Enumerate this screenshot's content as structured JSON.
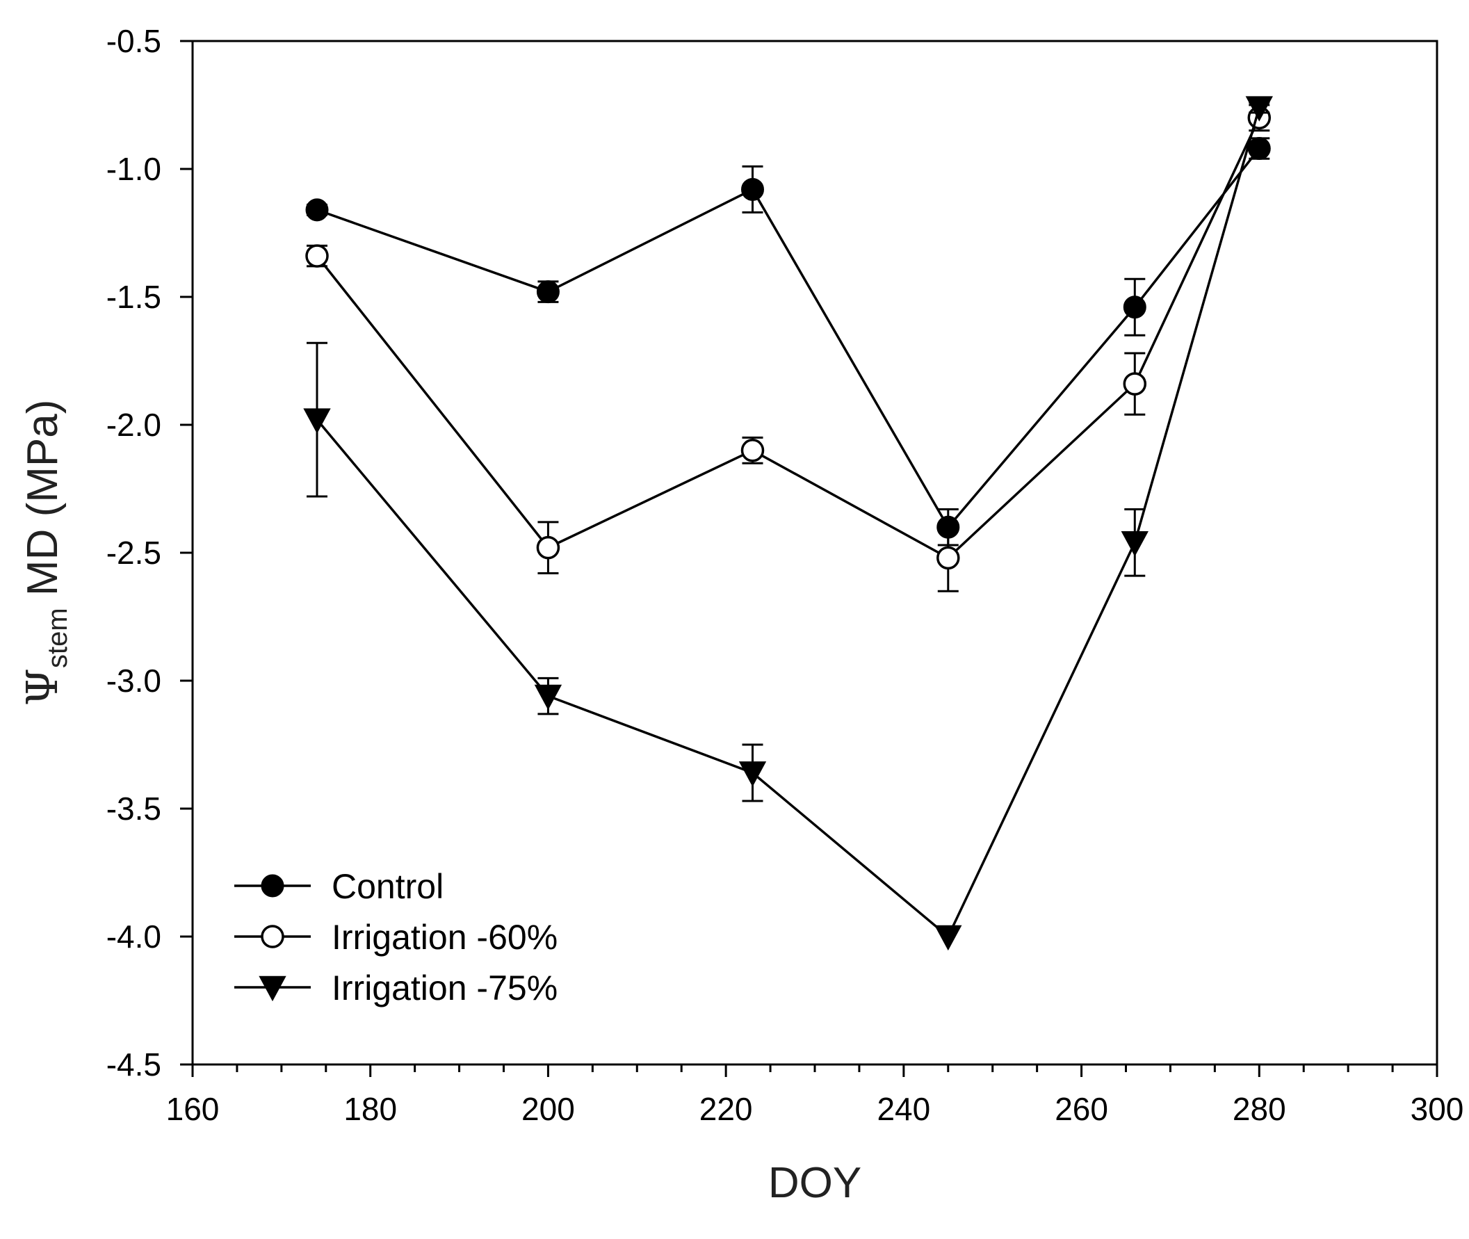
{
  "chart_data": {
    "type": "line",
    "title": "",
    "xlabel": "DOY",
    "ylabel": {
      "symbol": "Ψ",
      "subscript": "stem",
      "rest": " MD (MPa)"
    },
    "xlim": [
      160,
      300
    ],
    "ylim": [
      -4.5,
      -0.5
    ],
    "xticks": [
      160,
      180,
      200,
      220,
      240,
      260,
      280,
      300
    ],
    "yticks": [
      -0.5,
      -1.0,
      -1.5,
      -2.0,
      -2.5,
      -3.0,
      -3.5,
      -4.0,
      -4.5
    ],
    "ytick_labels": [
      "-0.5",
      "-1.0",
      "-1.5",
      "-2.0",
      "-2.5",
      "-3.0",
      "-3.5",
      "-4.0",
      "-4.5"
    ],
    "grid": false,
    "legend_position": "bottom-left",
    "series": [
      {
        "name": "Control",
        "marker": "filled-circle",
        "x": [
          174,
          200,
          223,
          245,
          266,
          280
        ],
        "y": [
          -1.16,
          -1.48,
          -1.08,
          -2.4,
          -1.54,
          -0.92
        ],
        "err": [
          0.02,
          0.04,
          0.09,
          0.07,
          0.11,
          0.04
        ]
      },
      {
        "name": "Irrigation -60%",
        "marker": "open-circle",
        "x": [
          174,
          200,
          223,
          245,
          266,
          280
        ],
        "y": [
          -1.34,
          -2.48,
          -2.1,
          -2.52,
          -1.84,
          -0.8
        ],
        "err": [
          0.04,
          0.1,
          0.05,
          0.13,
          0.12,
          0.05
        ]
      },
      {
        "name": "Irrigation -75%",
        "marker": "filled-triangle-down",
        "x": [
          174,
          200,
          223,
          245,
          266,
          280
        ],
        "y": [
          -1.98,
          -3.06,
          -3.36,
          -4.0,
          -2.46,
          -0.76
        ],
        "err": [
          0.3,
          0.07,
          0.11,
          0.0,
          0.13,
          0.02
        ]
      }
    ]
  }
}
